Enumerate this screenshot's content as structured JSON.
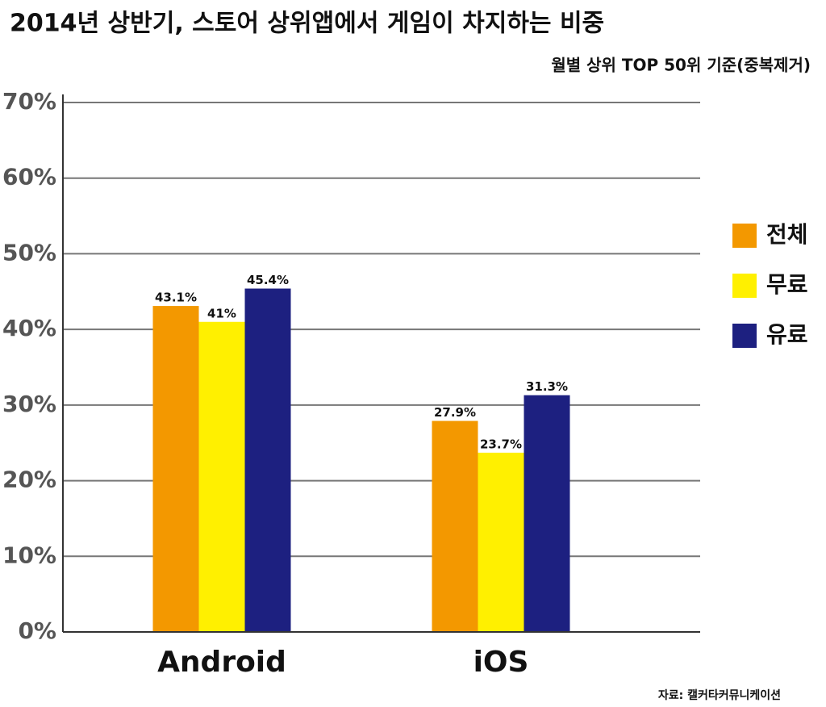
{
  "chart_data": {
    "type": "bar",
    "title": "2014년 상반기, 스토어 상위앱에서 게임이 차지하는 비중",
    "subtitle": "월별 상위 TOP 50위 기준(중복제거)",
    "source": "자료: 캘커타커뮤니케이션",
    "categories": [
      "Android",
      "iOS"
    ],
    "series": [
      {
        "name": "전체",
        "color": "#f39800",
        "values": [
          43.1,
          27.9
        ],
        "value_labels": [
          "43.1%",
          "27.9%"
        ]
      },
      {
        "name": "무료",
        "color": "#fff000",
        "values": [
          41,
          23.7
        ],
        "value_labels": [
          "41%",
          "23.7%"
        ]
      },
      {
        "name": "유료",
        "color": "#1d2080",
        "values": [
          45.4,
          31.3
        ],
        "value_labels": [
          "45.4%",
          "31.3%"
        ]
      }
    ],
    "ylim": [
      0,
      70
    ],
    "yticks": [
      {
        "value": 0,
        "label": "0%"
      },
      {
        "value": 10,
        "label": "10%"
      },
      {
        "value": 20,
        "label": "20%"
      },
      {
        "value": 30,
        "label": "30%"
      },
      {
        "value": 40,
        "label": "40%"
      },
      {
        "value": 50,
        "label": "50%"
      },
      {
        "value": 60,
        "label": "60%"
      },
      {
        "value": 70,
        "label": "70%"
      }
    ],
    "grid": true,
    "legend": "right"
  }
}
